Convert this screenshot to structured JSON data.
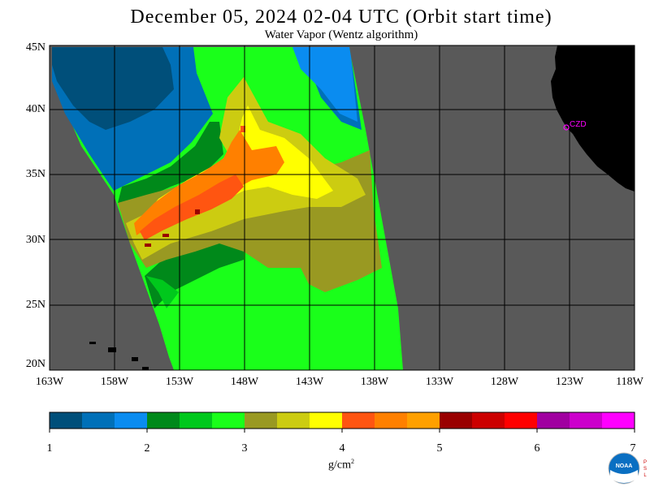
{
  "header": {
    "title": "December 05, 2024  02-04 UTC  (Orbit start time)",
    "subtitle": "Water Vapor (Wentz algorithm)"
  },
  "map": {
    "lat_labels": [
      "45N",
      "40N",
      "35N",
      "30N",
      "25N",
      "20N"
    ],
    "lon_labels": [
      "163W",
      "158W",
      "153W",
      "148W",
      "143W",
      "138W",
      "133W",
      "128W",
      "123W",
      "118W"
    ],
    "station_label": "CZD",
    "colors": {
      "land": "#000000",
      "no_data": "#595959",
      "grid": "#000000",
      "station": "#ff00ff"
    }
  },
  "legend": {
    "tick_labels": [
      "1",
      "2",
      "3",
      "4",
      "5",
      "6",
      "7"
    ],
    "units": "g/cm",
    "units_sup": "2",
    "colors": [
      "#004f7a",
      "#0070b8",
      "#0a8cf0",
      "#00891a",
      "#00c81c",
      "#1aff1a",
      "#999922",
      "#cccc11",
      "#ffff00",
      "#ff5511",
      "#ff8000",
      "#ffa000",
      "#990000",
      "#cc0000",
      "#ff0000",
      "#a000a0",
      "#cc00cc",
      "#ff00ff"
    ]
  },
  "logo": {
    "text": "NOAA",
    "side_text": "PSL",
    "primary_color": "#0a6fc2"
  }
}
